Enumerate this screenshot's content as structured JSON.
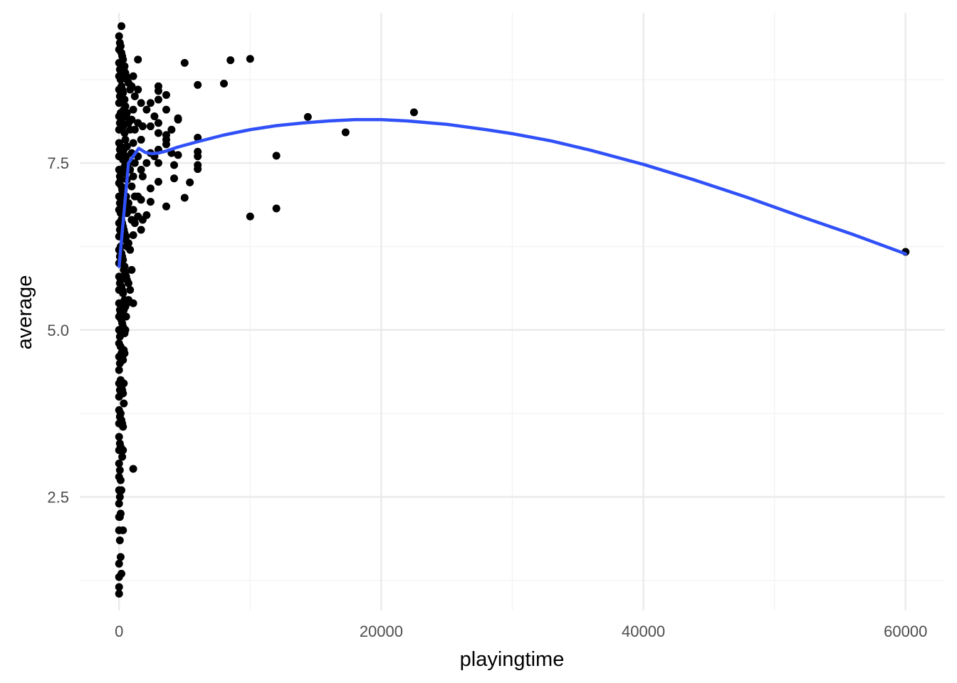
{
  "chart_data": {
    "type": "scatter",
    "xlabel": "playingtime",
    "ylabel": "average",
    "xlim": [
      -3000,
      63000
    ],
    "ylim": [
      0.8,
      9.75
    ],
    "x_ticks": [
      0,
      20000,
      40000,
      60000
    ],
    "x_tick_labels": [
      "0",
      "20000",
      "40000",
      "60000"
    ],
    "x_minor_ticks": [
      10000,
      30000,
      50000
    ],
    "y_ticks": [
      2.5,
      5.0,
      7.5
    ],
    "y_tick_labels": [
      "2.5",
      "5.0",
      "7.5"
    ],
    "y_minor_ticks": [
      1.25,
      3.75,
      6.25,
      8.75
    ],
    "grid": true,
    "colors": {
      "points": "#000000",
      "smooth": "#3050f8",
      "grid_major": "#ebebeb",
      "grid_minor": "#f4f4f4",
      "background": "#ffffff"
    },
    "points": [
      [
        0,
        9.4
      ],
      [
        0,
        9.2
      ],
      [
        0,
        9.0
      ],
      [
        0,
        8.8
      ],
      [
        0,
        8.6
      ],
      [
        0,
        8.4
      ],
      [
        0,
        8.2
      ],
      [
        0,
        8.0
      ],
      [
        0,
        7.8
      ],
      [
        0,
        7.6
      ],
      [
        0,
        7.4
      ],
      [
        0,
        7.2
      ],
      [
        0,
        7.0
      ],
      [
        0,
        6.8
      ],
      [
        0,
        6.6
      ],
      [
        0,
        6.4
      ],
      [
        0,
        6.2
      ],
      [
        0,
        6.0
      ],
      [
        0,
        5.8
      ],
      [
        0,
        5.6
      ],
      [
        0,
        5.4
      ],
      [
        0,
        5.2
      ],
      [
        0,
        5.0
      ],
      [
        0,
        4.8
      ],
      [
        0,
        4.6
      ],
      [
        0,
        4.4
      ],
      [
        0,
        4.2
      ],
      [
        0,
        4.0
      ],
      [
        0,
        3.8
      ],
      [
        0,
        3.6
      ],
      [
        0,
        3.4
      ],
      [
        0,
        3.2
      ],
      [
        0,
        3.0
      ],
      [
        0,
        2.8
      ],
      [
        0,
        2.6
      ],
      [
        0,
        2.4
      ],
      [
        0,
        2.2
      ],
      [
        0,
        2.0
      ],
      [
        0,
        1.5
      ],
      [
        0,
        1.3
      ],
      [
        0,
        1.15
      ],
      [
        0,
        1.05
      ],
      [
        60,
        9.3
      ],
      [
        60,
        8.9
      ],
      [
        60,
        8.5
      ],
      [
        60,
        8.1
      ],
      [
        60,
        7.7
      ],
      [
        60,
        7.3
      ],
      [
        60,
        6.9
      ],
      [
        60,
        6.5
      ],
      [
        60,
        6.1
      ],
      [
        60,
        5.7
      ],
      [
        60,
        5.3
      ],
      [
        60,
        4.9
      ],
      [
        60,
        4.5
      ],
      [
        60,
        4.1
      ],
      [
        60,
        3.7
      ],
      [
        60,
        3.3
      ],
      [
        60,
        2.9
      ],
      [
        60,
        2.5
      ],
      [
        60,
        2.2
      ],
      [
        60,
        1.85
      ],
      [
        120,
        9.25
      ],
      [
        120,
        8.75
      ],
      [
        120,
        8.25
      ],
      [
        120,
        7.75
      ],
      [
        120,
        7.25
      ],
      [
        120,
        6.75
      ],
      [
        120,
        6.25
      ],
      [
        120,
        5.75
      ],
      [
        120,
        5.25
      ],
      [
        120,
        4.75
      ],
      [
        120,
        4.25
      ],
      [
        120,
        3.75
      ],
      [
        120,
        3.25
      ],
      [
        120,
        2.75
      ],
      [
        120,
        2.25
      ],
      [
        120,
        1.6
      ],
      [
        180,
        9.55
      ],
      [
        180,
        9.15
      ],
      [
        180,
        8.65
      ],
      [
        180,
        8.15
      ],
      [
        180,
        7.65
      ],
      [
        180,
        7.15
      ],
      [
        180,
        6.65
      ],
      [
        180,
        6.15
      ],
      [
        180,
        5.65
      ],
      [
        180,
        5.15
      ],
      [
        180,
        4.65
      ],
      [
        180,
        4.15
      ],
      [
        180,
        3.65
      ],
      [
        180,
        3.2
      ],
      [
        180,
        2.6
      ],
      [
        180,
        1.35
      ],
      [
        240,
        9.1
      ],
      [
        240,
        8.6
      ],
      [
        240,
        8.1
      ],
      [
        240,
        7.6
      ],
      [
        240,
        7.1
      ],
      [
        240,
        6.6
      ],
      [
        240,
        6.1
      ],
      [
        240,
        5.6
      ],
      [
        240,
        5.1
      ],
      [
        240,
        4.6
      ],
      [
        240,
        4.1
      ],
      [
        240,
        3.6
      ],
      [
        240,
        3.1
      ],
      [
        300,
        9.05
      ],
      [
        300,
        8.55
      ],
      [
        300,
        8.05
      ],
      [
        300,
        7.55
      ],
      [
        300,
        7.05
      ],
      [
        300,
        6.55
      ],
      [
        300,
        6.05
      ],
      [
        300,
        5.55
      ],
      [
        300,
        5.05
      ],
      [
        300,
        4.55
      ],
      [
        300,
        4.05
      ],
      [
        300,
        3.55
      ],
      [
        300,
        3.2
      ],
      [
        300,
        2.0
      ],
      [
        360,
        8.9
      ],
      [
        360,
        8.3
      ],
      [
        360,
        7.7
      ],
      [
        360,
        7.1
      ],
      [
        360,
        6.5
      ],
      [
        360,
        5.9
      ],
      [
        360,
        5.3
      ],
      [
        360,
        4.7
      ],
      [
        360,
        4.2
      ],
      [
        360,
        3.9
      ],
      [
        420,
        8.95
      ],
      [
        420,
        8.45
      ],
      [
        420,
        7.95
      ],
      [
        420,
        7.45
      ],
      [
        420,
        6.95
      ],
      [
        420,
        6.45
      ],
      [
        420,
        5.95
      ],
      [
        420,
        5.45
      ],
      [
        420,
        4.95
      ],
      [
        420,
        4.65
      ],
      [
        480,
        8.85
      ],
      [
        480,
        8.35
      ],
      [
        480,
        7.85
      ],
      [
        480,
        7.35
      ],
      [
        480,
        6.85
      ],
      [
        480,
        6.35
      ],
      [
        480,
        5.85
      ],
      [
        480,
        5.35
      ],
      [
        480,
        5.0
      ],
      [
        540,
        8.8
      ],
      [
        540,
        8.2
      ],
      [
        540,
        7.6
      ],
      [
        540,
        7.0
      ],
      [
        540,
        6.4
      ],
      [
        540,
        5.8
      ],
      [
        540,
        5.2
      ],
      [
        600,
        8.75
      ],
      [
        600,
        8.25
      ],
      [
        600,
        7.75
      ],
      [
        600,
        7.25
      ],
      [
        600,
        6.75
      ],
      [
        600,
        6.25
      ],
      [
        600,
        5.75
      ],
      [
        600,
        5.4
      ],
      [
        720,
        8.7
      ],
      [
        720,
        8.1
      ],
      [
        720,
        7.5
      ],
      [
        720,
        6.9
      ],
      [
        720,
        6.3
      ],
      [
        720,
        5.7
      ],
      [
        720,
        5.45
      ],
      [
        840,
        8.6
      ],
      [
        840,
        8.0
      ],
      [
        840,
        7.4
      ],
      [
        840,
        6.8
      ],
      [
        840,
        6.2
      ],
      [
        840,
        5.6
      ],
      [
        960,
        8.65
      ],
      [
        960,
        8.15
      ],
      [
        960,
        7.65
      ],
      [
        960,
        7.15
      ],
      [
        960,
        6.65
      ],
      [
        960,
        5.9
      ],
      [
        1080,
        8.8
      ],
      [
        1080,
        8.3
      ],
      [
        1080,
        7.8
      ],
      [
        1080,
        7.3
      ],
      [
        1080,
        6.8
      ],
      [
        1080,
        6.42
      ],
      [
        1080,
        5.4
      ],
      [
        1080,
        2.92
      ],
      [
        1200,
        8.5
      ],
      [
        1200,
        8.0
      ],
      [
        1200,
        7.5
      ],
      [
        1200,
        7.0
      ],
      [
        1200,
        6.6
      ],
      [
        1440,
        9.05
      ],
      [
        1440,
        8.6
      ],
      [
        1440,
        8.1
      ],
      [
        1440,
        7.6
      ],
      [
        1440,
        7.0
      ],
      [
        1440,
        6.7
      ],
      [
        1680,
        8.4
      ],
      [
        1680,
        7.85
      ],
      [
        1680,
        7.4
      ],
      [
        1680,
        6.95
      ],
      [
        1680,
        6.5
      ],
      [
        1800,
        8.05
      ],
      [
        1800,
        7.3
      ],
      [
        1800,
        6.65
      ],
      [
        2100,
        8.3
      ],
      [
        2100,
        7.5
      ],
      [
        2100,
        6.72
      ],
      [
        2400,
        8.4
      ],
      [
        2400,
        8.05
      ],
      [
        2400,
        7.65
      ],
      [
        2400,
        7.12
      ],
      [
        2400,
        6.92
      ],
      [
        2700,
        8.2
      ],
      [
        2700,
        7.6
      ],
      [
        3000,
        8.65
      ],
      [
        3000,
        8.58
      ],
      [
        3000,
        8.45
      ],
      [
        3000,
        8.1
      ],
      [
        3000,
        7.95
      ],
      [
        3000,
        7.7
      ],
      [
        3000,
        7.5
      ],
      [
        3000,
        7.22
      ],
      [
        3600,
        8.52
      ],
      [
        3600,
        8.3
      ],
      [
        3600,
        7.92
      ],
      [
        3600,
        7.85
      ],
      [
        3600,
        7.78
      ],
      [
        3600,
        6.85
      ],
      [
        4000,
        8.0
      ],
      [
        4000,
        7.65
      ],
      [
        4200,
        7.47
      ],
      [
        4200,
        7.27
      ],
      [
        4500,
        8.17
      ],
      [
        4500,
        8.15
      ],
      [
        4500,
        7.62
      ],
      [
        5000,
        9.0
      ],
      [
        5000,
        6.98
      ],
      [
        5400,
        7.21
      ],
      [
        6000,
        8.67
      ],
      [
        6000,
        7.88
      ],
      [
        6000,
        7.67
      ],
      [
        6000,
        7.6
      ],
      [
        6000,
        7.47
      ],
      [
        6000,
        7.41
      ],
      [
        8000,
        8.69
      ],
      [
        8500,
        9.04
      ],
      [
        10000,
        9.06
      ],
      [
        10000,
        6.7
      ],
      [
        12000,
        7.61
      ],
      [
        12000,
        6.82
      ],
      [
        14400,
        8.19
      ],
      [
        17280,
        7.96
      ],
      [
        22500,
        8.26
      ],
      [
        60000,
        6.17
      ]
    ],
    "smooth_curve": [
      [
        0,
        5.95
      ],
      [
        720,
        7.5
      ],
      [
        1500,
        7.72
      ],
      [
        2000,
        7.66
      ],
      [
        2500,
        7.64
      ],
      [
        3000,
        7.65
      ],
      [
        3600,
        7.68
      ],
      [
        4500,
        7.74
      ],
      [
        6000,
        7.82
      ],
      [
        8000,
        7.92
      ],
      [
        10000,
        8.0
      ],
      [
        12000,
        8.06
      ],
      [
        14000,
        8.1
      ],
      [
        16000,
        8.13
      ],
      [
        18000,
        8.15
      ],
      [
        20000,
        8.15
      ],
      [
        22000,
        8.13
      ],
      [
        25000,
        8.08
      ],
      [
        28000,
        8.0
      ],
      [
        30000,
        7.94
      ],
      [
        33000,
        7.83
      ],
      [
        36000,
        7.69
      ],
      [
        40000,
        7.48
      ],
      [
        44000,
        7.24
      ],
      [
        48000,
        6.98
      ],
      [
        52000,
        6.7
      ],
      [
        56000,
        6.43
      ],
      [
        60000,
        6.14
      ]
    ]
  }
}
